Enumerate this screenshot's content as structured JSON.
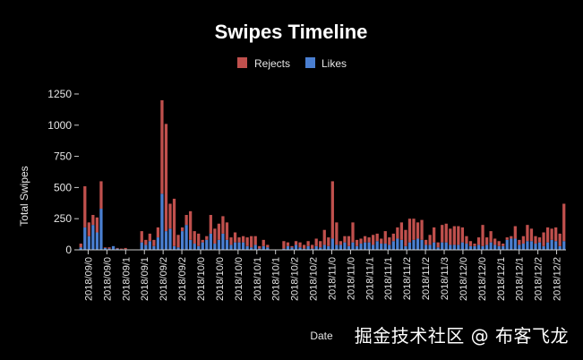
{
  "watermark": "掘金技术社区 @ 布客飞龙",
  "chart_data": {
    "type": "bar",
    "stacked": true,
    "title": "Swipes Timeline",
    "xlabel": "Date",
    "ylabel": "Total Swipes",
    "ylim": [
      0,
      1300
    ],
    "yticks": [
      0,
      250,
      500,
      750,
      1000,
      1250
    ],
    "legend_position": "top",
    "grid": false,
    "xtick_labels": [
      "2018/09/0",
      "2018/09/0",
      "2018/09/1",
      "2018/09/1",
      "2018/09/2",
      "2018/09/2",
      "2018/10/0",
      "2018/10/0",
      "2018/10/0",
      "2018/10/1",
      "2018/10/1",
      "2018/10/2",
      "2018/10/2",
      "2018/11/0",
      "2018/11/0",
      "2018/11/1",
      "2018/11/1",
      "2018/11/2",
      "2018/11/2",
      "2018/11/3",
      "2018/12/0",
      "2018/12/0",
      "2018/12/1",
      "2018/12/1",
      "2018/12/2",
      "2018/12/2"
    ],
    "series": [
      {
        "name": "Likes",
        "color": "#4a7fd1",
        "values": [
          20,
          180,
          110,
          200,
          140,
          330,
          15,
          10,
          30,
          10,
          5,
          5,
          0,
          0,
          0,
          60,
          40,
          70,
          30,
          100,
          450,
          150,
          170,
          30,
          20,
          150,
          200,
          80,
          50,
          30,
          60,
          80,
          130,
          50,
          80,
          130,
          80,
          40,
          60,
          60,
          60,
          30,
          20,
          40,
          10,
          30,
          20,
          0,
          0,
          0,
          10,
          30,
          20,
          40,
          20,
          10,
          30,
          10,
          30,
          20,
          40,
          30,
          90,
          40,
          40,
          60,
          30,
          60,
          30,
          50,
          60,
          60,
          40,
          70,
          50,
          50,
          40,
          70,
          90,
          80,
          30,
          60,
          80,
          90,
          80,
          40,
          40,
          60,
          20,
          60,
          60,
          40,
          40,
          40,
          60,
          50,
          30,
          30,
          40,
          30,
          40,
          60,
          40,
          30,
          30,
          80,
          90,
          90,
          40,
          50,
          70,
          70,
          50,
          60,
          30,
          60,
          80,
          70,
          30,
          70
        ]
      },
      {
        "name": "Rejects",
        "color": "#c0504d",
        "values": [
          30,
          330,
          110,
          80,
          120,
          220,
          5,
          10,
          0,
          5,
          5,
          10,
          0,
          0,
          0,
          90,
          40,
          60,
          50,
          80,
          750,
          860,
          200,
          380,
          100,
          30,
          80,
          230,
          100,
          100,
          20,
          30,
          150,
          120,
          130,
          140,
          140,
          60,
          80,
          40,
          50,
          70,
          90,
          70,
          20,
          50,
          20,
          0,
          0,
          0,
          60,
          30,
          10,
          30,
          40,
          30,
          40,
          30,
          60,
          50,
          120,
          70,
          460,
          180,
          30,
          50,
          80,
          160,
          50,
          40,
          50,
          40,
          80,
          60,
          40,
          100,
          60,
          60,
          90,
          140,
          130,
          190,
          170,
          130,
          160,
          40,
          80,
          120,
          40,
          140,
          150,
          130,
          150,
          150,
          120,
          60,
          40,
          20,
          60,
          170,
          60,
          90,
          50,
          40,
          20,
          20,
          20,
          100,
          40,
          60,
          130,
          100,
          60,
          40,
          110,
          120,
          90,
          110,
          100,
          300
        ]
      }
    ]
  }
}
